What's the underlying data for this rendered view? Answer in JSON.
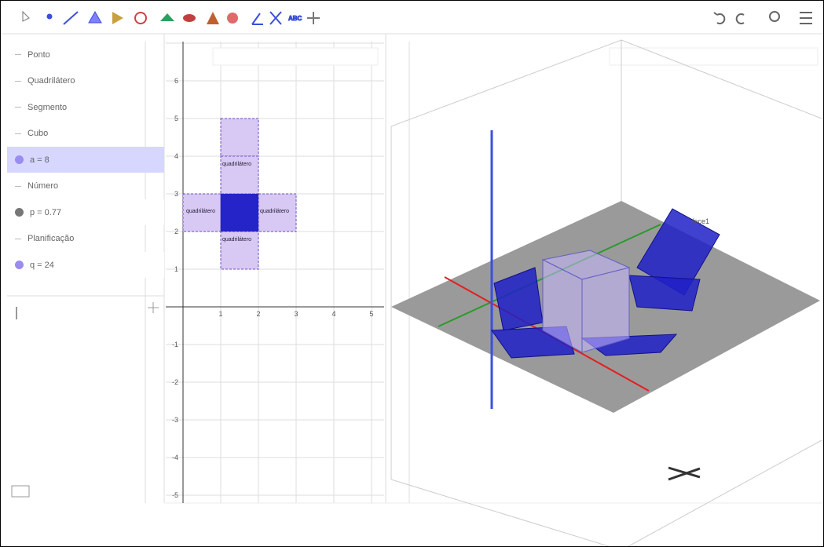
{
  "toolbar": {
    "text_tool_label": "ABC"
  },
  "algebra": {
    "items": [
      {
        "kind": "header",
        "label": "Ponto"
      },
      {
        "kind": "header",
        "label": "Quadrilátero"
      },
      {
        "kind": "header",
        "label": "Segmento"
      },
      {
        "kind": "header",
        "label": "Cubo"
      },
      {
        "kind": "value",
        "label": "a = 8"
      },
      {
        "kind": "header",
        "label": "Número"
      },
      {
        "kind": "value",
        "label": "p = 0.77"
      },
      {
        "kind": "header",
        "label": "Planificação"
      },
      {
        "kind": "value",
        "label": "q = 24"
      }
    ]
  },
  "graphics2d": {
    "xticks": [
      "1",
      "2",
      "3",
      "4",
      "5"
    ],
    "yticks": [
      "-5",
      "-4",
      "-3",
      "-2",
      "-1",
      "1",
      "2",
      "3",
      "4",
      "5",
      "6"
    ],
    "face_labels": [
      "quadrilátero",
      "quadrilátero",
      "quadrilátero",
      "quadrilátero"
    ]
  },
  "graphics3d": {
    "face_label": "face1"
  }
}
